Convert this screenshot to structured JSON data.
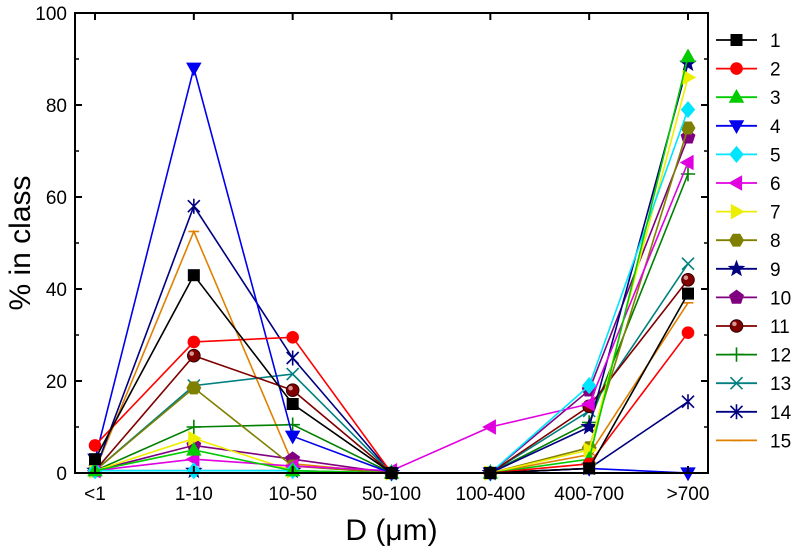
{
  "chart_data": {
    "type": "line",
    "xlabel": "D (μm)",
    "ylabel": "% in class",
    "categories": [
      "<1",
      "1-10",
      "10-50",
      "50-100",
      "100-400",
      "400-700",
      ">700"
    ],
    "ylim": [
      0,
      100
    ],
    "yticks": [
      "0",
      "20",
      "40",
      "60",
      "80",
      "100"
    ],
    "legend_position": "right",
    "grid": false,
    "series": [
      {
        "name": "1",
        "color": "#000000",
        "marker": "square",
        "values": [
          3,
          43,
          15,
          0,
          0,
          1,
          39
        ]
      },
      {
        "name": "2",
        "color": "#ff0000",
        "marker": "circle",
        "values": [
          6,
          28.5,
          29.5,
          0,
          0,
          2,
          30.5
        ]
      },
      {
        "name": "3",
        "color": "#00cc00",
        "marker": "triangle-up",
        "values": [
          0.5,
          5,
          0.5,
          0,
          0,
          3,
          90.5
        ]
      },
      {
        "name": "4",
        "color": "#0000ee",
        "marker": "triangle-down",
        "values": [
          3,
          88,
          8,
          0,
          0,
          1,
          0
        ]
      },
      {
        "name": "5",
        "color": "#00e5ff",
        "marker": "diamond",
        "values": [
          0.5,
          0.5,
          0.5,
          0,
          0,
          19,
          79
        ]
      },
      {
        "name": "6",
        "color": "#e000e0",
        "marker": "triangle-left",
        "values": [
          0.5,
          3,
          1.5,
          0.5,
          10,
          15,
          67.5
        ]
      },
      {
        "name": "7",
        "color": "#eeee00",
        "marker": "triangle-right",
        "values": [
          0.5,
          7.5,
          0.5,
          0,
          0,
          5,
          86
        ]
      },
      {
        "name": "8",
        "color": "#808000",
        "marker": "hexagon",
        "values": [
          0.5,
          18.5,
          1.5,
          0,
          0,
          5.5,
          75
        ]
      },
      {
        "name": "9",
        "color": "#000080",
        "marker": "star",
        "values": [
          0.5,
          0.5,
          0.5,
          0,
          0,
          10,
          89
        ]
      },
      {
        "name": "10",
        "color": "#800080",
        "marker": "pentagon",
        "values": [
          0.5,
          6,
          3,
          0,
          0,
          18,
          73
        ]
      },
      {
        "name": "11",
        "color": "#800000",
        "marker": "sphere",
        "values": [
          0.5,
          25.5,
          18,
          0,
          0,
          14.5,
          42
        ]
      },
      {
        "name": "12",
        "color": "#008000",
        "marker": "plus",
        "values": [
          0.5,
          10,
          10.5,
          0,
          0,
          11,
          65
        ]
      },
      {
        "name": "13",
        "color": "#008080",
        "marker": "x",
        "values": [
          0.5,
          19,
          21.5,
          0,
          0,
          13.5,
          45.5
        ]
      },
      {
        "name": "14",
        "color": "#000080",
        "marker": "asterisk",
        "values": [
          0.5,
          58,
          25,
          0,
          0,
          1,
          15.5
        ]
      },
      {
        "name": "15",
        "color": "#e08000",
        "marker": "dash",
        "values": [
          0.5,
          52.5,
          2,
          0,
          0,
          4,
          37
        ]
      }
    ]
  }
}
